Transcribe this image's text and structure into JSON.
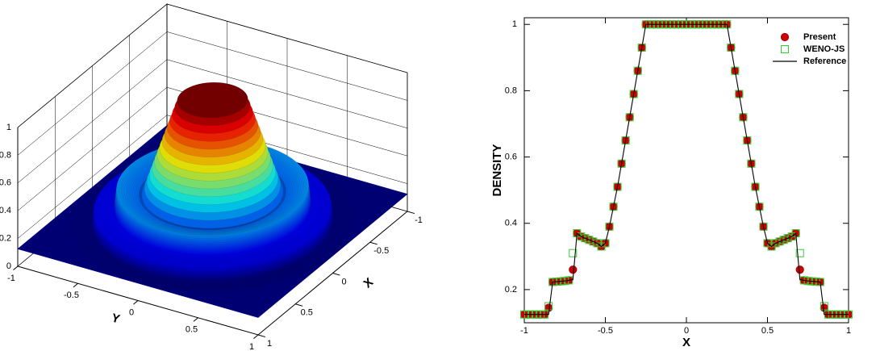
{
  "chart_data": [
    {
      "type": "surface3d",
      "xlabel": "X",
      "ylabel": "Y",
      "xlim": [
        -1,
        1
      ],
      "ylim": [
        -1,
        1
      ],
      "zlim": [
        0,
        1
      ],
      "xticks": [
        -1,
        -0.5,
        0,
        0.5,
        1
      ],
      "yticks": [
        -1,
        -0.5,
        0,
        0.5,
        1
      ],
      "zticks": [
        0,
        0.2,
        0.4,
        0.6,
        0.8,
        1
      ],
      "radius": [
        0,
        0.25,
        0.5,
        0.52,
        0.68,
        0.7,
        0.84,
        0.86,
        1
      ],
      "values": [
        1,
        1,
        0.33,
        0.33,
        0.37,
        0.23,
        0.22,
        0.125,
        0.125
      ],
      "colormap": "jet",
      "grid": true
    },
    {
      "type": "line",
      "xlabel": "X",
      "ylabel": "DENSITY",
      "xlim": [
        -1,
        1
      ],
      "ylim": [
        0.1,
        1.02
      ],
      "xticks": [
        -1,
        -0.5,
        0,
        0.5,
        1
      ],
      "yticks": [
        0.2,
        0.4,
        0.6,
        0.8,
        1
      ],
      "legend": "upper right",
      "x": [
        -1,
        -0.975,
        -0.95,
        -0.925,
        -0.9,
        -0.875,
        -0.85,
        -0.825,
        -0.8,
        -0.775,
        -0.75,
        -0.725,
        -0.7,
        -0.675,
        -0.65,
        -0.625,
        -0.6,
        -0.575,
        -0.55,
        -0.525,
        -0.5,
        -0.475,
        -0.45,
        -0.425,
        -0.4,
        -0.375,
        -0.35,
        -0.325,
        -0.3,
        -0.275,
        -0.25,
        -0.225,
        -0.2,
        -0.175,
        -0.15,
        -0.125,
        -0.1,
        -0.075,
        -0.05,
        -0.025,
        0,
        0.025,
        0.05,
        0.075,
        0.1,
        0.125,
        0.15,
        0.175,
        0.2,
        0.225,
        0.25,
        0.275,
        0.3,
        0.325,
        0.35,
        0.375,
        0.4,
        0.425,
        0.45,
        0.475,
        0.5,
        0.525,
        0.55,
        0.575,
        0.6,
        0.625,
        0.65,
        0.675,
        0.7,
        0.725,
        0.75,
        0.775,
        0.8,
        0.825,
        0.85,
        0.875,
        0.9,
        0.925,
        0.95,
        0.975,
        1
      ],
      "series": [
        {
          "name": "Present",
          "color": "#cc0000",
          "marker": "circle",
          "values": [
            0.125,
            0.125,
            0.125,
            0.125,
            0.125,
            0.125,
            0.145,
            0.223,
            0.224,
            0.225,
            0.226,
            0.228,
            0.26,
            0.37,
            0.36,
            0.355,
            0.35,
            0.345,
            0.34,
            0.33,
            0.34,
            0.39,
            0.45,
            0.51,
            0.58,
            0.65,
            0.72,
            0.79,
            0.86,
            0.93,
            1,
            1,
            1,
            1,
            1,
            1,
            1,
            1,
            1,
            1,
            1,
            1,
            1,
            1,
            1,
            1,
            1,
            1,
            1,
            1,
            1,
            0.93,
            0.86,
            0.79,
            0.72,
            0.65,
            0.58,
            0.51,
            0.45,
            0.39,
            0.34,
            0.33,
            0.34,
            0.345,
            0.35,
            0.355,
            0.36,
            0.37,
            0.26,
            0.228,
            0.226,
            0.225,
            0.224,
            0.223,
            0.145,
            0.125,
            0.125,
            0.125,
            0.125,
            0.125,
            0.125
          ]
        },
        {
          "name": "WENO-JS",
          "color": "#33cc33",
          "marker": "square",
          "values": [
            0.125,
            0.125,
            0.125,
            0.125,
            0.125,
            0.125,
            0.15,
            0.223,
            0.224,
            0.225,
            0.226,
            0.228,
            0.31,
            0.37,
            0.36,
            0.355,
            0.35,
            0.345,
            0.34,
            0.33,
            0.34,
            0.39,
            0.45,
            0.51,
            0.58,
            0.65,
            0.72,
            0.79,
            0.86,
            0.93,
            1,
            1,
            1,
            1,
            1,
            1,
            1,
            1,
            1,
            1,
            1,
            1,
            1,
            1,
            1,
            1,
            1,
            1,
            1,
            1,
            1,
            0.93,
            0.86,
            0.79,
            0.72,
            0.65,
            0.58,
            0.51,
            0.45,
            0.39,
            0.34,
            0.33,
            0.34,
            0.345,
            0.35,
            0.355,
            0.36,
            0.37,
            0.31,
            0.228,
            0.226,
            0.225,
            0.224,
            0.223,
            0.15,
            0.125,
            0.125,
            0.125,
            0.125,
            0.125,
            0.125
          ]
        },
        {
          "name": "Reference",
          "color": "#000000",
          "marker": "line",
          "values": [
            0.125,
            0.125,
            0.125,
            0.125,
            0.125,
            0.125,
            0.125,
            0.223,
            0.224,
            0.225,
            0.226,
            0.228,
            0.23,
            0.37,
            0.36,
            0.355,
            0.35,
            0.345,
            0.34,
            0.33,
            0.34,
            0.39,
            0.45,
            0.51,
            0.58,
            0.65,
            0.72,
            0.79,
            0.86,
            0.93,
            1,
            1,
            1,
            1,
            1,
            1,
            1,
            1,
            1,
            1,
            1,
            1,
            1,
            1,
            1,
            1,
            1,
            1,
            1,
            1,
            1,
            0.93,
            0.86,
            0.79,
            0.72,
            0.65,
            0.58,
            0.51,
            0.45,
            0.39,
            0.34,
            0.33,
            0.34,
            0.345,
            0.35,
            0.355,
            0.36,
            0.37,
            0.23,
            0.228,
            0.226,
            0.225,
            0.224,
            0.223,
            0.125,
            0.125,
            0.125,
            0.125,
            0.125,
            0.125,
            0.125
          ]
        }
      ]
    }
  ]
}
